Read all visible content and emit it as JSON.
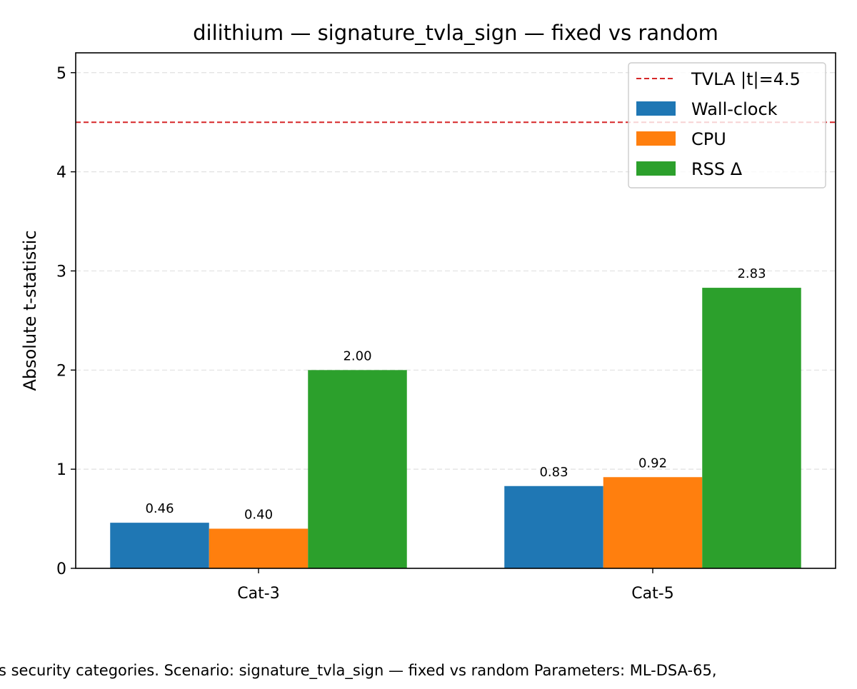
{
  "chart_data": {
    "type": "bar",
    "title": "dilithium — signature_tvla_sign — fixed vs random",
    "xlabel": "",
    "ylabel": "Absolute t-statistic",
    "categories": [
      "Cat-3",
      "Cat-5"
    ],
    "series": [
      {
        "name": "Wall-clock",
        "color": "#1f77b4",
        "values": [
          0.46,
          0.83
        ],
        "labels": [
          "0.46",
          "0.83"
        ]
      },
      {
        "name": "CPU",
        "color": "#ff7f0e",
        "values": [
          0.4,
          0.92
        ],
        "labels": [
          "0.40",
          "0.92"
        ]
      },
      {
        "name": "RSS Δ",
        "color": "#2ca02c",
        "values": [
          2.0,
          2.83
        ],
        "labels": [
          "2.00",
          "2.83"
        ]
      }
    ],
    "threshold": {
      "label": "TVLA |t|=4.5",
      "value": 4.5,
      "color": "#d62728",
      "style": "dashed"
    },
    "ylim": [
      0,
      5.2
    ],
    "yticks": [
      "0",
      "1",
      "2",
      "3",
      "4",
      "5"
    ],
    "grid": true,
    "legend_position": "top-right"
  },
  "caption": "s security categories. Scenario: signature_tvla_sign — fixed vs random Parameters: ML-DSA-65,"
}
